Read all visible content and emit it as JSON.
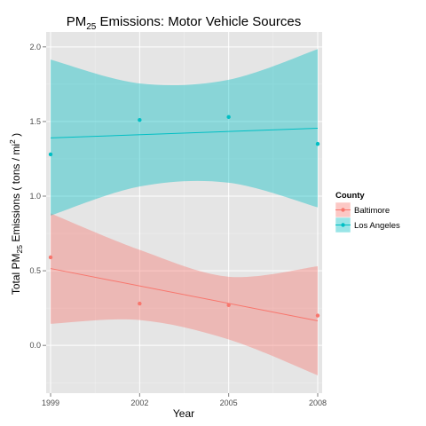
{
  "chart_data": {
    "type": "scatter",
    "title": "PM25 Emissions: Motor Vehicle Sources",
    "title_parts": {
      "main": "PM",
      "sub": "25",
      "rest": " Emissions: Motor Vehicle Sources"
    },
    "xlabel": "Year",
    "ylabel": "Total PM25 Emissions ( tons / mi2 )",
    "ylabel_parts": {
      "pre": "Total PM",
      "sub": "25",
      "mid": " Emissions ( tons / mi",
      "sup": "2",
      "post": " )"
    },
    "xlim": [
      1998.85,
      2008.15
    ],
    "ylim": [
      -0.32,
      2.1
    ],
    "x_ticks": [
      1999,
      2002,
      2005,
      2008
    ],
    "x_tick_labels": [
      "1999",
      "2002",
      "2005",
      "2008"
    ],
    "y_ticks": [
      0.0,
      0.5,
      1.0,
      1.5,
      2.0
    ],
    "y_tick_labels": [
      "0.0",
      "0.5",
      "1.0",
      "1.5",
      "2.0"
    ],
    "grid": true,
    "legend": {
      "title": "County",
      "position": "right"
    },
    "series": [
      {
        "name": "Baltimore",
        "color": "#F8766D",
        "x": [
          1999,
          2002,
          2005,
          2008
        ],
        "y": [
          0.59,
          0.28,
          0.27,
          0.2
        ],
        "fit": {
          "intercept_at_1999": 0.515,
          "slope_per_year": -0.0389
        },
        "ci_lower": [
          0.145,
          0.17,
          0.04,
          -0.2
        ],
        "ci_upper": [
          0.885,
          0.64,
          0.46,
          0.53
        ]
      },
      {
        "name": "Los Angeles",
        "color": "#00BFC4",
        "x": [
          1999,
          2002,
          2005,
          2008
        ],
        "y": [
          1.28,
          1.51,
          1.53,
          1.35
        ],
        "fit": {
          "intercept_at_1999": 1.39,
          "slope_per_year": 0.00722
        },
        "ci_lower": [
          0.87,
          1.065,
          1.09,
          0.925
        ],
        "ci_upper": [
          1.915,
          1.755,
          1.78,
          1.985
        ]
      }
    ]
  }
}
